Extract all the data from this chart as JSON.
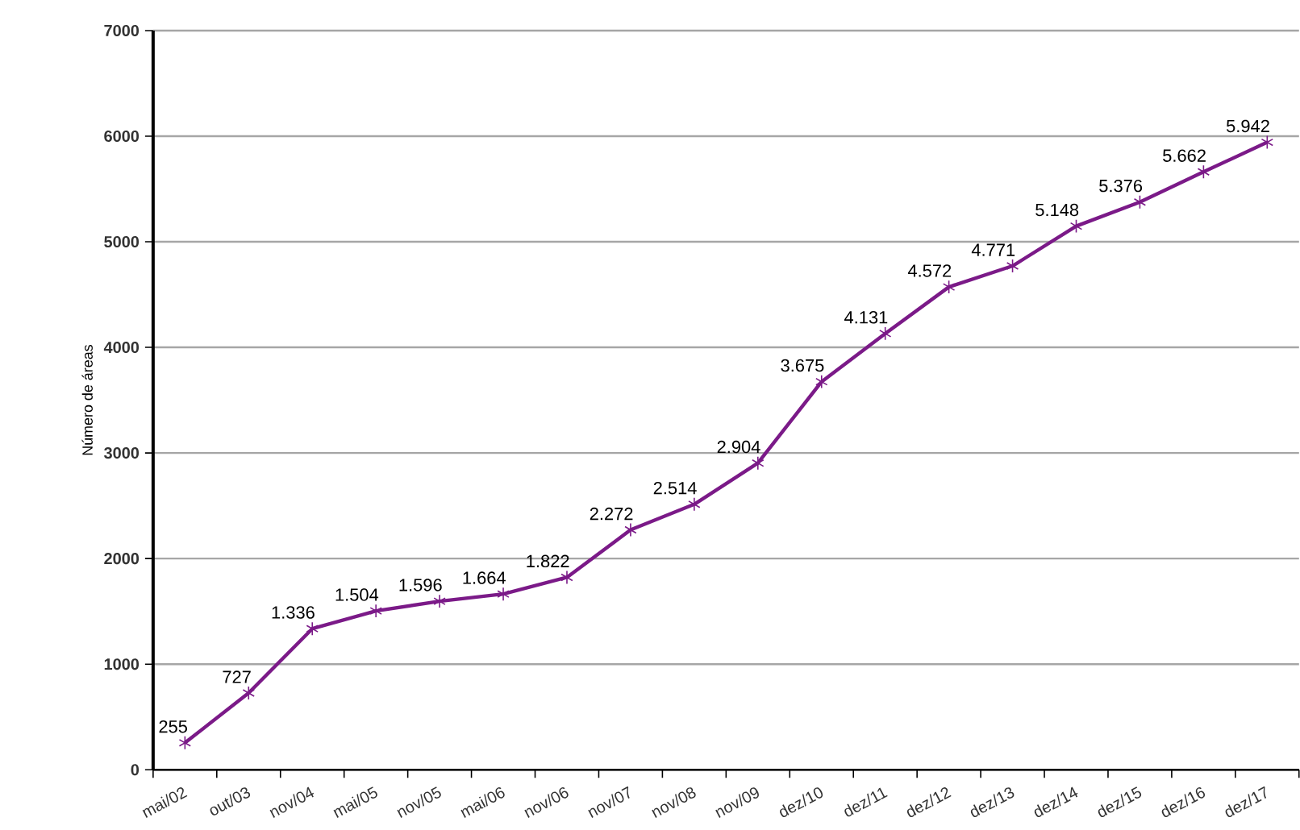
{
  "chart_data": {
    "type": "line",
    "ylabel": "Número de áreas",
    "categories": [
      "mai/02",
      "out/03",
      "nov/04",
      "mai/05",
      "nov/05",
      "mai/06",
      "nov/06",
      "nov/07",
      "nov/08",
      "nov/09",
      "dez/10",
      "dez/11",
      "dez/12",
      "dez/13",
      "dez/14",
      "dez/15",
      "dez/16",
      "dez/17"
    ],
    "series": [
      {
        "color": "#7b1a88",
        "values": [
          255,
          727,
          1336,
          1504,
          1596,
          1664,
          1822,
          2272,
          2514,
          2904,
          3675,
          4131,
          4572,
          4771,
          5148,
          5376,
          5662,
          5942
        ],
        "value_labels": [
          "255",
          "727",
          "1.336",
          "1.504",
          "1.596",
          "1.664",
          "1.822",
          "2.272",
          "2.514",
          "2.904",
          "3.675",
          "4.131",
          "4.572",
          "4.771",
          "5.148",
          "5.376",
          "5.662",
          "5.942"
        ]
      }
    ],
    "ylim": [
      0,
      7000
    ],
    "yticks": [
      0,
      1000,
      2000,
      3000,
      4000,
      5000,
      6000,
      7000
    ],
    "grid": "y",
    "marker": "cross",
    "line_style": "solid"
  }
}
